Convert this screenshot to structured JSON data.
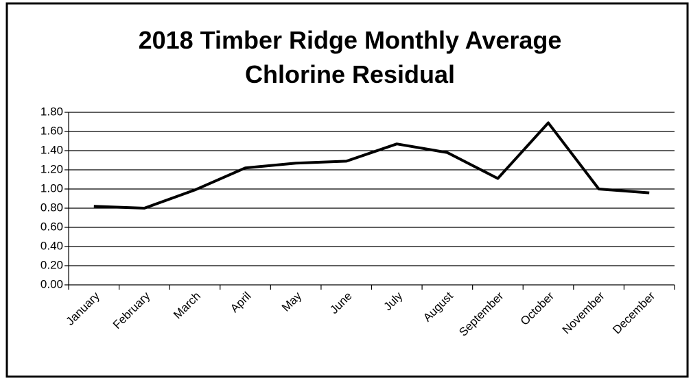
{
  "chart_data": {
    "type": "line",
    "title": "2018 Timber Ridge Monthly Average Chlorine Residual",
    "categories": [
      "January",
      "February",
      "March",
      "April",
      "May",
      "June",
      "July",
      "August",
      "September",
      "October",
      "November",
      "December"
    ],
    "series": [
      {
        "name": "Chlorine Residual",
        "color": "#000000",
        "values": [
          0.82,
          0.8,
          0.99,
          1.22,
          1.27,
          1.29,
          1.47,
          1.38,
          1.11,
          1.69,
          1.0,
          0.96
        ]
      }
    ],
    "ylim": [
      0,
      1.8
    ],
    "yticks": [
      {
        "value": 0,
        "label": "0.00"
      },
      {
        "value": 0.2,
        "label": "0.20"
      },
      {
        "value": 0.4,
        "label": "0.40"
      },
      {
        "value": 0.6,
        "label": "0.60"
      },
      {
        "value": 0.8,
        "label": "0.80"
      },
      {
        "value": 1.0,
        "label": "1.00"
      },
      {
        "value": 1.2,
        "label": "1.20"
      },
      {
        "value": 1.4,
        "label": "1.40"
      },
      {
        "value": 1.6,
        "label": "1.60"
      },
      {
        "value": 1.8,
        "label": "1.80"
      }
    ],
    "grid": true
  }
}
